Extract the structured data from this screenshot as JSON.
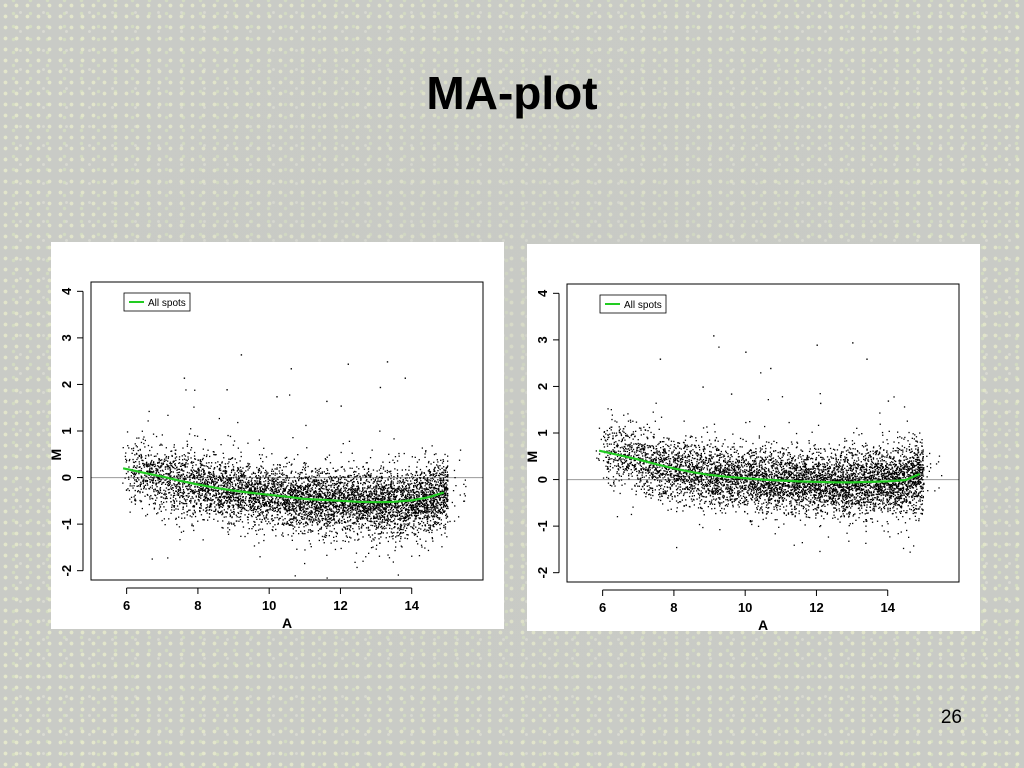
{
  "slide": {
    "title": "MA-plot",
    "page_number": "26"
  },
  "chart_data": [
    {
      "type": "scatter",
      "title": "",
      "xlabel": "A",
      "ylabel": "M",
      "xlim": [
        5.0,
        16.0
      ],
      "ylim": [
        -2.2,
        4.2
      ],
      "xticks": [
        "6",
        "8",
        "10",
        "12",
        "14"
      ],
      "yticks": [
        "-2",
        "-1",
        "0",
        "1",
        "2",
        "3",
        "4"
      ],
      "reference_line_y": 0,
      "legend": {
        "position": "top-left",
        "entries": [
          "All spots"
        ]
      },
      "series": [
        {
          "name": "All spots",
          "kind": "loess-line",
          "color": "#22cc22",
          "x": [
            5.9,
            6.5,
            7.0,
            7.5,
            8.0,
            8.5,
            9.0,
            9.5,
            10.0,
            10.5,
            11.0,
            11.5,
            12.0,
            12.5,
            13.0,
            13.5,
            14.0,
            14.5,
            14.9
          ],
          "y": [
            0.2,
            0.1,
            0.02,
            -0.07,
            -0.15,
            -0.22,
            -0.28,
            -0.33,
            -0.37,
            -0.41,
            -0.46,
            -0.48,
            -0.5,
            -0.52,
            -0.53,
            -0.52,
            -0.49,
            -0.42,
            -0.32
          ]
        }
      ],
      "points": {
        "description_color": "#000000",
        "count_estimate": 6000,
        "x_range": [
          5.8,
          15.5
        ],
        "outliers": [
          [
            9.2,
            2.65
          ],
          [
            12.2,
            2.45
          ],
          [
            13.3,
            2.5
          ],
          [
            7.6,
            2.15
          ],
          [
            10.6,
            2.35
          ],
          [
            13.8,
            2.15
          ],
          [
            10.2,
            1.75
          ],
          [
            12.0,
            1.55
          ],
          [
            8.8,
            1.9
          ],
          [
            11.6,
            1.65
          ],
          [
            13.1,
            1.95
          ]
        ]
      }
    },
    {
      "type": "scatter",
      "title": "",
      "xlabel": "A",
      "ylabel": "M",
      "xlim": [
        5.0,
        16.0
      ],
      "ylim": [
        -2.2,
        4.2
      ],
      "xticks": [
        "6",
        "8",
        "10",
        "12",
        "14"
      ],
      "yticks": [
        "-2",
        "-1",
        "0",
        "1",
        "2",
        "3",
        "4"
      ],
      "reference_line_y": 0,
      "legend": {
        "position": "top-left",
        "entries": [
          "All spots"
        ]
      },
      "series": [
        {
          "name": "All spots",
          "kind": "loess-line",
          "color": "#22cc22",
          "x": [
            5.9,
            6.5,
            7.0,
            7.5,
            8.0,
            8.5,
            9.0,
            9.5,
            10.0,
            10.5,
            11.0,
            11.5,
            12.0,
            12.5,
            13.0,
            13.5,
            14.0,
            14.5,
            14.9
          ],
          "y": [
            0.62,
            0.52,
            0.43,
            0.33,
            0.24,
            0.16,
            0.1,
            0.06,
            0.03,
            0.0,
            -0.02,
            -0.04,
            -0.05,
            -0.06,
            -0.06,
            -0.05,
            -0.04,
            -0.01,
            0.12
          ]
        }
      ],
      "points": {
        "description_color": "#000000",
        "count_estimate": 6000,
        "x_range": [
          5.8,
          15.5
        ],
        "outliers": [
          [
            9.1,
            3.1
          ],
          [
            13.0,
            2.95
          ],
          [
            10.0,
            2.75
          ],
          [
            12.0,
            2.9
          ],
          [
            13.4,
            2.6
          ],
          [
            7.6,
            2.6
          ],
          [
            10.7,
            2.4
          ],
          [
            8.8,
            2.0
          ],
          [
            12.1,
            1.65
          ],
          [
            9.6,
            1.85
          ],
          [
            14.0,
            1.7
          ]
        ]
      }
    }
  ]
}
